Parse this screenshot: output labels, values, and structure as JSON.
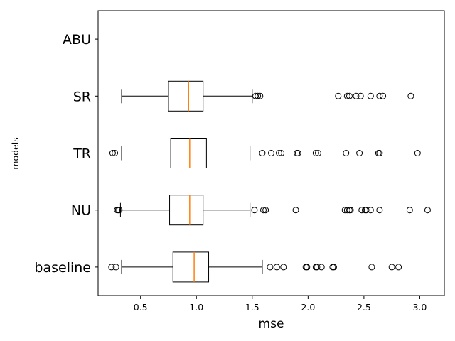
{
  "chart_data": {
    "type": "boxplot",
    "orientation": "horizontal",
    "xlabel": "mse",
    "ylabel": "models",
    "xlim": [
      0.12,
      3.22
    ],
    "xticks": [
      0.5,
      1.0,
      1.5,
      2.0,
      2.5,
      3.0
    ],
    "xtick_labels": [
      "0.5",
      "1.0",
      "1.5",
      "2.0",
      "2.5",
      "3.0"
    ],
    "categories": [
      "baseline",
      "NU",
      "TR",
      "SR",
      "ABU"
    ],
    "colors": {
      "box": "#000000",
      "median": "#ff7f0e",
      "flier": "#000000"
    },
    "series": [
      {
        "name": "baseline",
        "whislo": 0.33,
        "q1": 0.79,
        "med": 0.98,
        "q3": 1.11,
        "whishi": 1.59,
        "fliers": [
          0.24,
          0.28,
          1.66,
          1.72,
          1.78,
          1.98,
          1.99,
          2.07,
          2.08,
          2.12,
          2.22,
          2.23,
          2.57,
          2.75,
          2.81
        ]
      },
      {
        "name": "NU",
        "whislo": 0.32,
        "q1": 0.76,
        "med": 0.94,
        "q3": 1.06,
        "whishi": 1.48,
        "fliers": [
          0.29,
          0.3,
          0.31,
          1.52,
          1.6,
          1.62,
          1.89,
          2.33,
          2.35,
          2.37,
          2.38,
          2.48,
          2.51,
          2.52,
          2.56,
          2.64,
          2.91,
          3.07
        ]
      },
      {
        "name": "TR",
        "whislo": 0.33,
        "q1": 0.77,
        "med": 0.94,
        "q3": 1.09,
        "whishi": 1.48,
        "fliers": [
          0.25,
          0.27,
          1.59,
          1.67,
          1.74,
          1.76,
          1.9,
          1.91,
          2.07,
          2.09,
          2.34,
          2.46,
          2.63,
          2.64,
          2.98
        ]
      },
      {
        "name": "SR",
        "whislo": 0.33,
        "q1": 0.75,
        "med": 0.93,
        "q3": 1.06,
        "whishi": 1.5,
        "fliers": [
          1.53,
          1.55,
          1.57,
          2.27,
          2.35,
          2.37,
          2.43,
          2.47,
          2.56,
          2.64,
          2.67,
          2.92
        ]
      },
      {
        "name": "ABU",
        "whislo": null,
        "q1": null,
        "med": null,
        "q3": null,
        "whishi": null,
        "fliers": []
      }
    ]
  }
}
